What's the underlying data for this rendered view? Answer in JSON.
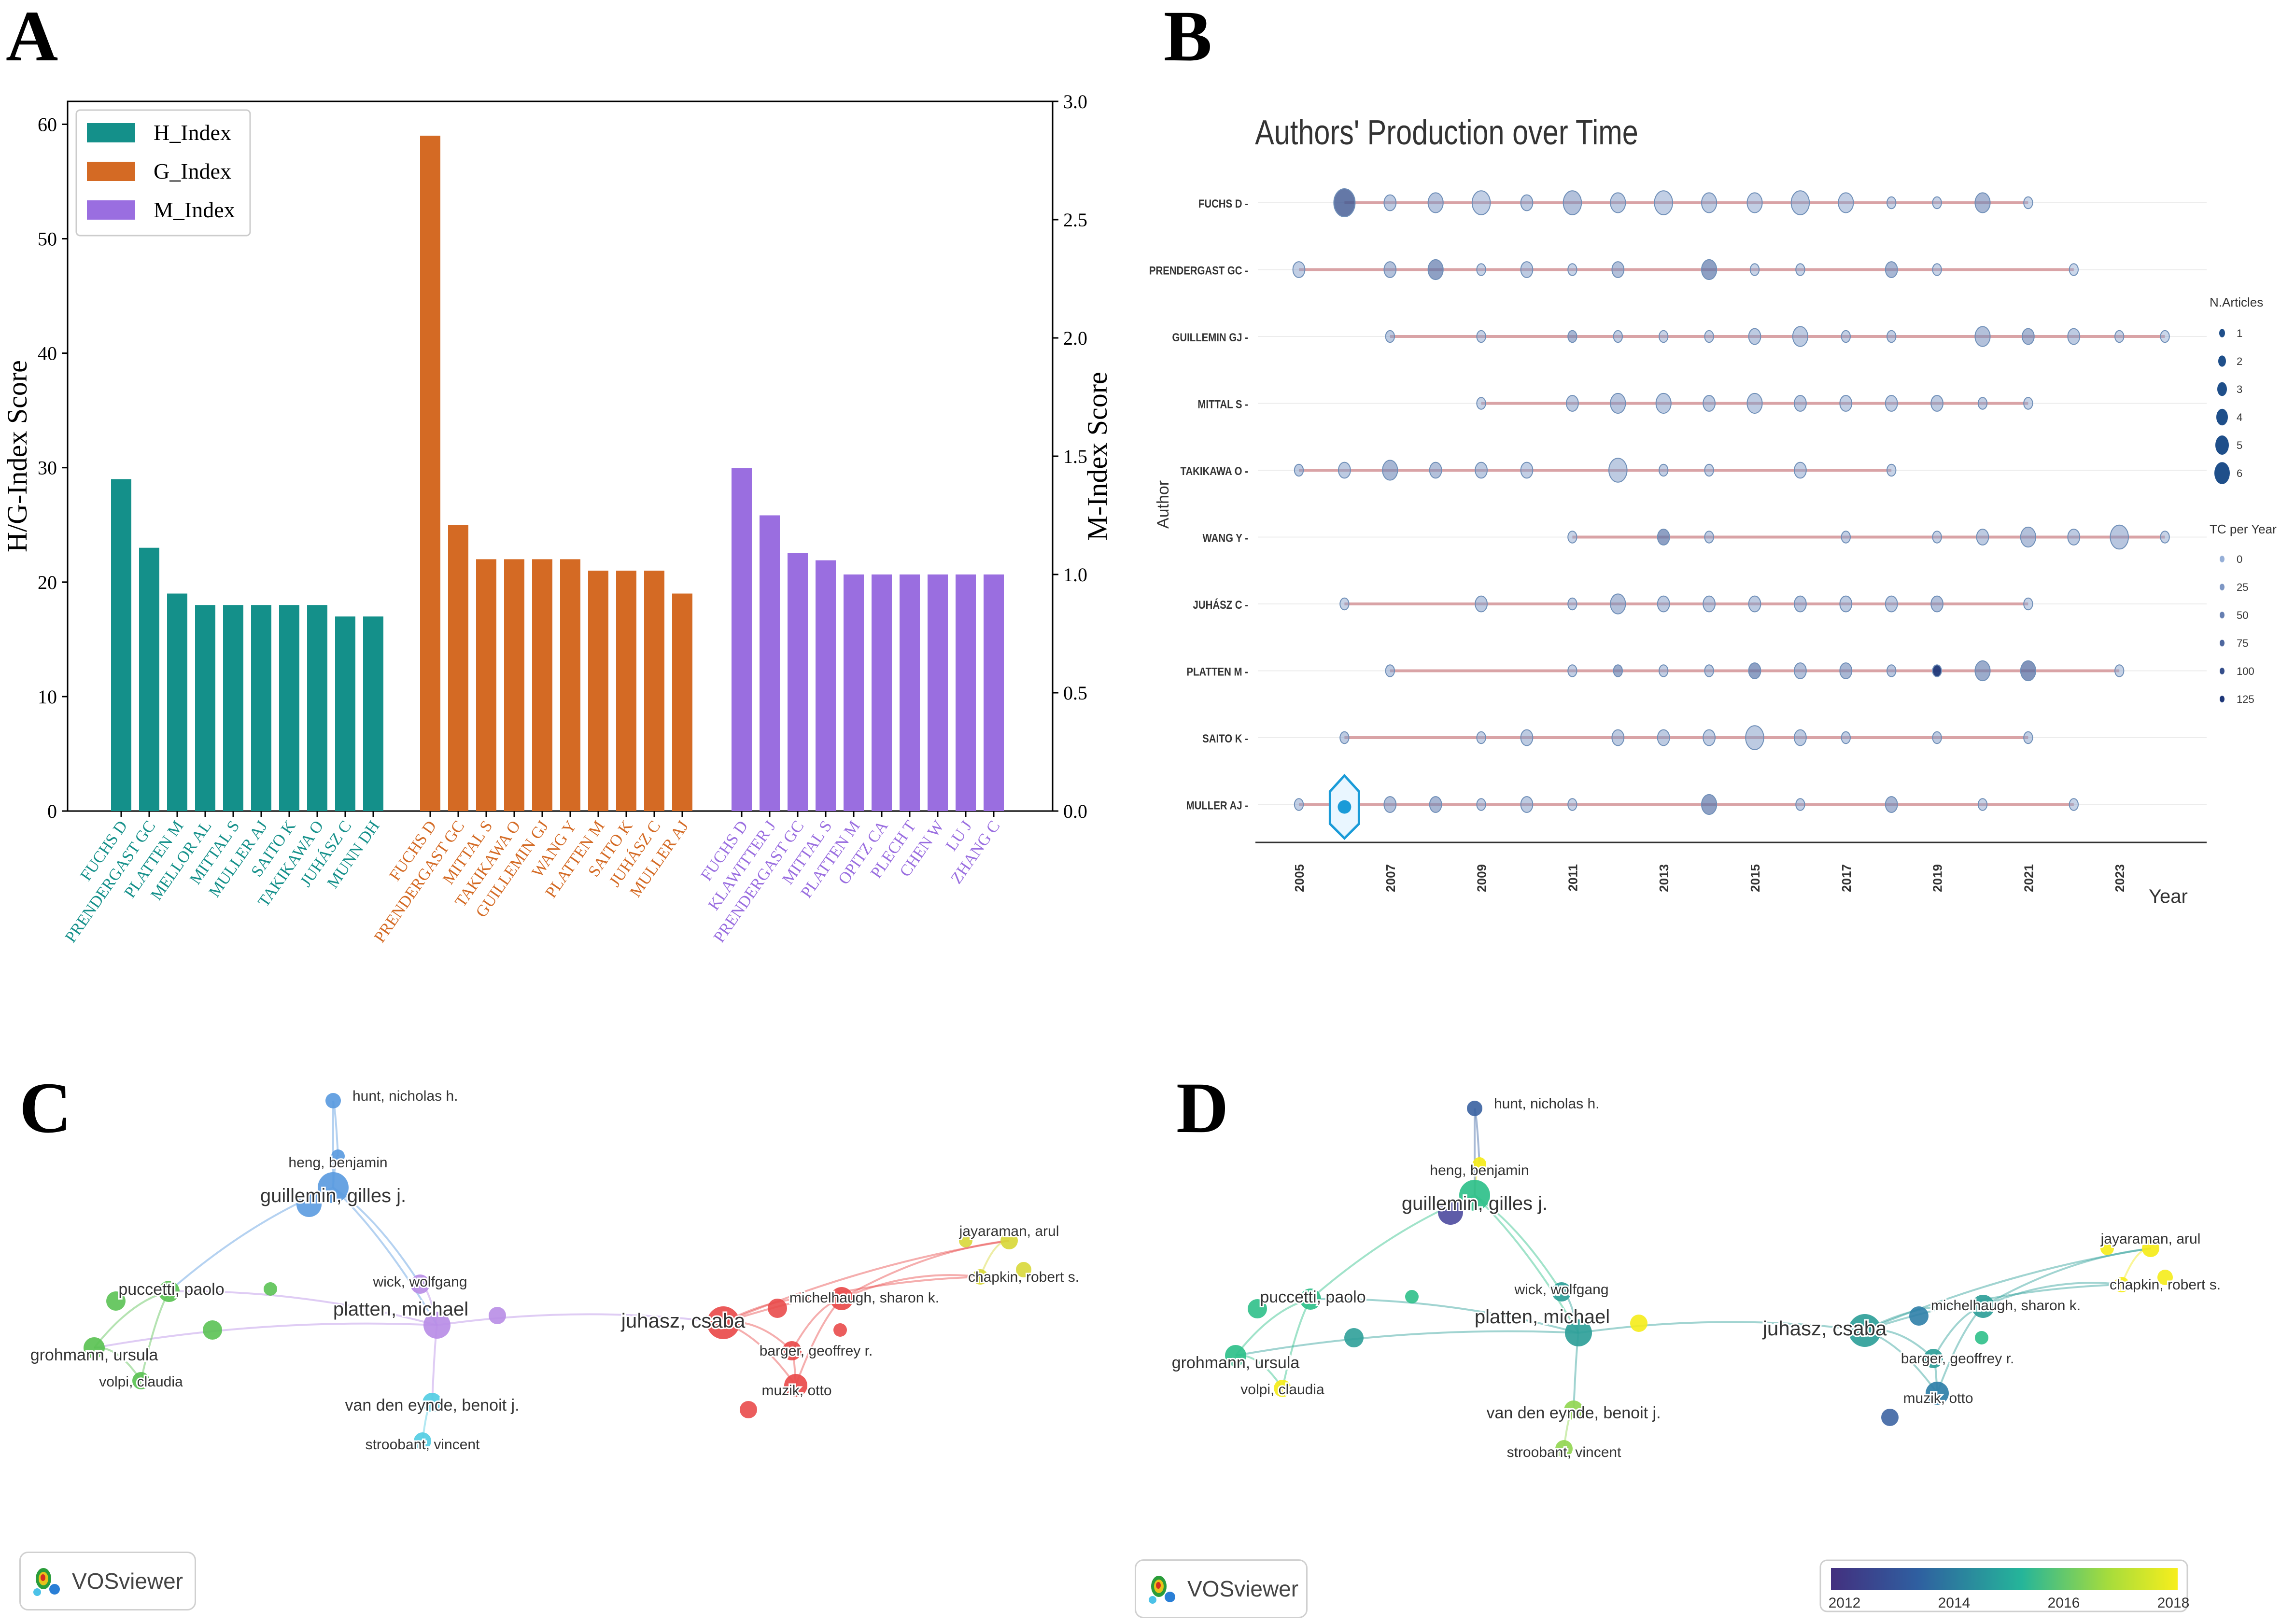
{
  "panels": {
    "a": {
      "label": "A"
    },
    "b": {
      "label": "B"
    },
    "c": {
      "label": "C"
    },
    "d": {
      "label": "D"
    }
  },
  "chart_data": [
    {
      "id": "A",
      "type": "bar",
      "ylabel_left": "H/G-Index Score",
      "ylabel_right": "M-Index Score",
      "ylim_left": [
        0,
        62
      ],
      "ylim_right": [
        0,
        3.0
      ],
      "yticks_left": [
        0,
        10,
        20,
        30,
        40,
        50,
        60
      ],
      "yticks_right": [
        "0.0",
        "0.5",
        "1.0",
        "1.5",
        "2.0",
        "2.5",
        "3.0"
      ],
      "legend": [
        "H_Index",
        "G_Index",
        "M_Index"
      ],
      "series": [
        {
          "name": "H_Index",
          "color": "#14908a",
          "axis": "left",
          "categories": [
            "FUCHS D",
            "PRENDERGAST GC",
            "PLATTEN M",
            "MELLOR AL",
            "MITTAL S",
            "MULLER AJ",
            "SAITO K",
            "TAKIKAWA O",
            "JUHÁSZ C",
            "MUNN DH"
          ],
          "values": [
            29,
            23,
            19,
            18,
            18,
            18,
            18,
            18,
            17,
            17
          ]
        },
        {
          "name": "G_Index",
          "color": "#d46a24",
          "axis": "left",
          "categories": [
            "FUCHS D",
            "PRENDERGAST GC",
            "MITTAL S",
            "TAKIKAWA O",
            "GUILLEMIN GJ",
            "WANG Y",
            "PLATTEN M",
            "SAITO K",
            "JUHÁSZ C",
            "MULLER AJ"
          ],
          "values": [
            59,
            25,
            22,
            22,
            22,
            22,
            21,
            21,
            21,
            19
          ]
        },
        {
          "name": "M_Index",
          "color": "#9a6ee0",
          "axis": "right",
          "categories": [
            "FUCHS D",
            "KLAWITTER J",
            "PRENDERGAST GC",
            "MITTAL S",
            "PLATTEN M",
            "OPITZ CA",
            "PLECH T",
            "CHEN W",
            "LU J",
            "ZHANG C"
          ],
          "values": [
            1.45,
            1.25,
            1.09,
            1.06,
            1.0,
            1.0,
            1.0,
            1.0,
            1.0,
            1.0
          ]
        }
      ]
    },
    {
      "id": "B",
      "type": "scatter",
      "title": "Authors' Production over Time",
      "xlabel": "Year",
      "ylabel": "Author",
      "xlim": [
        2005,
        2024
      ],
      "xticks": [
        2005,
        2007,
        2009,
        2011,
        2013,
        2015,
        2017,
        2019,
        2021,
        2023
      ],
      "authors": [
        "FUCHS D",
        "PRENDERGAST GC",
        "GUILLEMIN GJ",
        "MITTAL S",
        "TAKIKAWA O",
        "WANG Y",
        "JUHÁSZ C",
        "PLATTEN M",
        "SAITO K",
        "MULLER AJ"
      ],
      "rows": [
        {
          "author": "FUCHS D",
          "start": 2006,
          "end": 2021,
          "points": [
            [
              2006,
              5,
              90
            ],
            [
              2007,
              2,
              20
            ],
            [
              2008,
              3,
              25
            ],
            [
              2009,
              4,
              15
            ],
            [
              2010,
              2,
              20
            ],
            [
              2011,
              4,
              30
            ],
            [
              2012,
              3,
              20
            ],
            [
              2013,
              4,
              15
            ],
            [
              2014,
              3,
              20
            ],
            [
              2015,
              3,
              15
            ],
            [
              2016,
              4,
              20
            ],
            [
              2017,
              3,
              15
            ],
            [
              2018,
              1,
              10
            ],
            [
              2019,
              1,
              10
            ],
            [
              2020,
              3,
              40
            ],
            [
              2021,
              1,
              5
            ]
          ]
        },
        {
          "author": "PRENDERGAST GC",
          "start": 2005,
          "end": 2022,
          "points": [
            [
              2005,
              2,
              15
            ],
            [
              2007,
              2,
              30
            ],
            [
              2008,
              3,
              60
            ],
            [
              2009,
              1,
              10
            ],
            [
              2010,
              2,
              20
            ],
            [
              2011,
              1,
              10
            ],
            [
              2012,
              2,
              30
            ],
            [
              2014,
              3,
              60
            ],
            [
              2015,
              1,
              10
            ],
            [
              2016,
              1,
              10
            ],
            [
              2018,
              2,
              40
            ],
            [
              2019,
              1,
              10
            ],
            [
              2022,
              1,
              5
            ]
          ]
        },
        {
          "author": "GUILLEMIN GJ",
          "start": 2007,
          "end": 2024,
          "points": [
            [
              2007,
              1,
              20
            ],
            [
              2009,
              1,
              10
            ],
            [
              2011,
              1,
              40
            ],
            [
              2012,
              1,
              15
            ],
            [
              2013,
              1,
              10
            ],
            [
              2014,
              1,
              10
            ],
            [
              2015,
              2,
              20
            ],
            [
              2016,
              3,
              20
            ],
            [
              2017,
              1,
              15
            ],
            [
              2018,
              1,
              15
            ],
            [
              2020,
              3,
              30
            ],
            [
              2021,
              2,
              40
            ],
            [
              2022,
              2,
              20
            ],
            [
              2023,
              1,
              10
            ],
            [
              2024,
              1,
              5
            ]
          ]
        },
        {
          "author": "MITTAL S",
          "start": 2009,
          "end": 2021,
          "points": [
            [
              2009,
              1,
              10
            ],
            [
              2011,
              2,
              20
            ],
            [
              2012,
              3,
              25
            ],
            [
              2013,
              3,
              20
            ],
            [
              2014,
              2,
              20
            ],
            [
              2015,
              3,
              20
            ],
            [
              2016,
              2,
              20
            ],
            [
              2017,
              2,
              15
            ],
            [
              2018,
              2,
              15
            ],
            [
              2019,
              2,
              20
            ],
            [
              2020,
              1,
              15
            ],
            [
              2021,
              1,
              10
            ]
          ]
        },
        {
          "author": "TAKIKAWA O",
          "start": 2005,
          "end": 2018,
          "points": [
            [
              2005,
              1,
              20
            ],
            [
              2006,
              2,
              20
            ],
            [
              2007,
              3,
              40
            ],
            [
              2008,
              2,
              30
            ],
            [
              2009,
              2,
              20
            ],
            [
              2010,
              2,
              15
            ],
            [
              2012,
              4,
              20
            ],
            [
              2013,
              1,
              15
            ],
            [
              2014,
              1,
              10
            ],
            [
              2016,
              2,
              15
            ],
            [
              2018,
              1,
              10
            ]
          ]
        },
        {
          "author": "WANG Y",
          "start": 2011,
          "end": 2024,
          "points": [
            [
              2011,
              1,
              10
            ],
            [
              2013,
              2,
              60
            ],
            [
              2014,
              1,
              15
            ],
            [
              2017,
              1,
              15
            ],
            [
              2019,
              1,
              10
            ],
            [
              2020,
              2,
              20
            ],
            [
              2021,
              3,
              30
            ],
            [
              2022,
              2,
              20
            ],
            [
              2023,
              4,
              25
            ],
            [
              2024,
              1,
              10
            ]
          ]
        },
        {
          "author": "JUHÁSZ C",
          "start": 2006,
          "end": 2021,
          "points": [
            [
              2006,
              1,
              10
            ],
            [
              2009,
              2,
              20
            ],
            [
              2011,
              1,
              15
            ],
            [
              2012,
              3,
              30
            ],
            [
              2013,
              2,
              20
            ],
            [
              2014,
              2,
              20
            ],
            [
              2015,
              2,
              20
            ],
            [
              2016,
              2,
              25
            ],
            [
              2017,
              2,
              20
            ],
            [
              2018,
              2,
              20
            ],
            [
              2019,
              2,
              30
            ],
            [
              2021,
              1,
              10
            ]
          ]
        },
        {
          "author": "PLATTEN M",
          "start": 2007,
          "end": 2023,
          "points": [
            [
              2007,
              1,
              20
            ],
            [
              2011,
              1,
              15
            ],
            [
              2012,
              1,
              50
            ],
            [
              2013,
              1,
              15
            ],
            [
              2014,
              1,
              20
            ],
            [
              2015,
              2,
              60
            ],
            [
              2016,
              2,
              30
            ],
            [
              2017,
              2,
              40
            ],
            [
              2018,
              1,
              25
            ],
            [
              2019,
              1,
              125
            ],
            [
              2020,
              3,
              50
            ],
            [
              2021,
              3,
              70
            ],
            [
              2023,
              1,
              10
            ]
          ]
        },
        {
          "author": "SAITO K",
          "start": 2006,
          "end": 2021,
          "points": [
            [
              2006,
              1,
              20
            ],
            [
              2009,
              1,
              10
            ],
            [
              2010,
              2,
              20
            ],
            [
              2012,
              2,
              20
            ],
            [
              2013,
              2,
              20
            ],
            [
              2014,
              2,
              15
            ],
            [
              2015,
              4,
              20
            ],
            [
              2016,
              2,
              20
            ],
            [
              2017,
              1,
              15
            ],
            [
              2019,
              1,
              20
            ],
            [
              2021,
              1,
              15
            ]
          ]
        },
        {
          "author": "MULLER AJ",
          "start": 2005,
          "end": 2022,
          "points": [
            [
              2005,
              1,
              15
            ],
            [
              2006,
              2,
              20
            ],
            [
              2007,
              2,
              30
            ],
            [
              2008,
              2,
              40
            ],
            [
              2009,
              1,
              15
            ],
            [
              2010,
              2,
              20
            ],
            [
              2011,
              1,
              10
            ],
            [
              2014,
              3,
              60
            ],
            [
              2016,
              1,
              15
            ],
            [
              2018,
              2,
              40
            ],
            [
              2020,
              1,
              10
            ],
            [
              2022,
              1,
              10
            ]
          ]
        }
      ],
      "legend_size": {
        "title": "N.Articles",
        "values": [
          1,
          2,
          3,
          4,
          5,
          6
        ]
      },
      "legend_color": {
        "title": "TC per Year",
        "values": [
          0,
          25,
          50,
          75,
          100,
          125
        ]
      }
    },
    {
      "id": "C",
      "type": "network",
      "description": "co-authorship clusters",
      "nodes": [
        {
          "id": "hunt",
          "label": "hunt, nicholas h.",
          "cluster": "blue",
          "year": 2013
        },
        {
          "id": "heng",
          "label": "heng, benjamin",
          "cluster": "blue",
          "year": 2018
        },
        {
          "id": "guillemin",
          "label": "guillemin, gilles j.",
          "cluster": "blue",
          "year": 2016
        },
        {
          "id": "wick",
          "label": "wick, wolfgang",
          "cluster": "purple",
          "year": 2015
        },
        {
          "id": "platten",
          "label": "platten, michael",
          "cluster": "purple",
          "year": 2015
        },
        {
          "id": "puccetti",
          "label": "puccetti, paolo",
          "cluster": "green",
          "year": 2016
        },
        {
          "id": "grohmann",
          "label": "grohmann, ursula",
          "cluster": "green",
          "year": 2016
        },
        {
          "id": "volpi",
          "label": "volpi, claudia",
          "cluster": "green",
          "year": 2018
        },
        {
          "id": "vandeneynde",
          "label": "van den eynde, benoit j.",
          "cluster": "cyan",
          "year": 2017
        },
        {
          "id": "stroobant",
          "label": "stroobant, vincent",
          "cluster": "cyan",
          "year": 2017
        },
        {
          "id": "juhasz",
          "label": "juhasz, csaba",
          "cluster": "red",
          "year": 2015
        },
        {
          "id": "michelhaugh",
          "label": "michelhaugh, sharon k.",
          "cluster": "red",
          "year": 2015
        },
        {
          "id": "barger",
          "label": "barger, geoffrey r.",
          "cluster": "red",
          "year": 2015
        },
        {
          "id": "muzik",
          "label": "muzik, otto",
          "cluster": "red",
          "year": 2014
        },
        {
          "id": "jayaraman",
          "label": "jayaraman, arul",
          "cluster": "yellow",
          "year": 2018
        },
        {
          "id": "chapkin",
          "label": "chapkin, robert s.",
          "cluster": "yellow",
          "year": 2018
        }
      ]
    },
    {
      "id": "D",
      "type": "network",
      "description": "overlay by average publication year",
      "colorbar": {
        "ticks": [
          2012,
          2014,
          2016,
          2018
        ]
      }
    }
  ],
  "vos": {
    "label": "VOSviewer"
  }
}
